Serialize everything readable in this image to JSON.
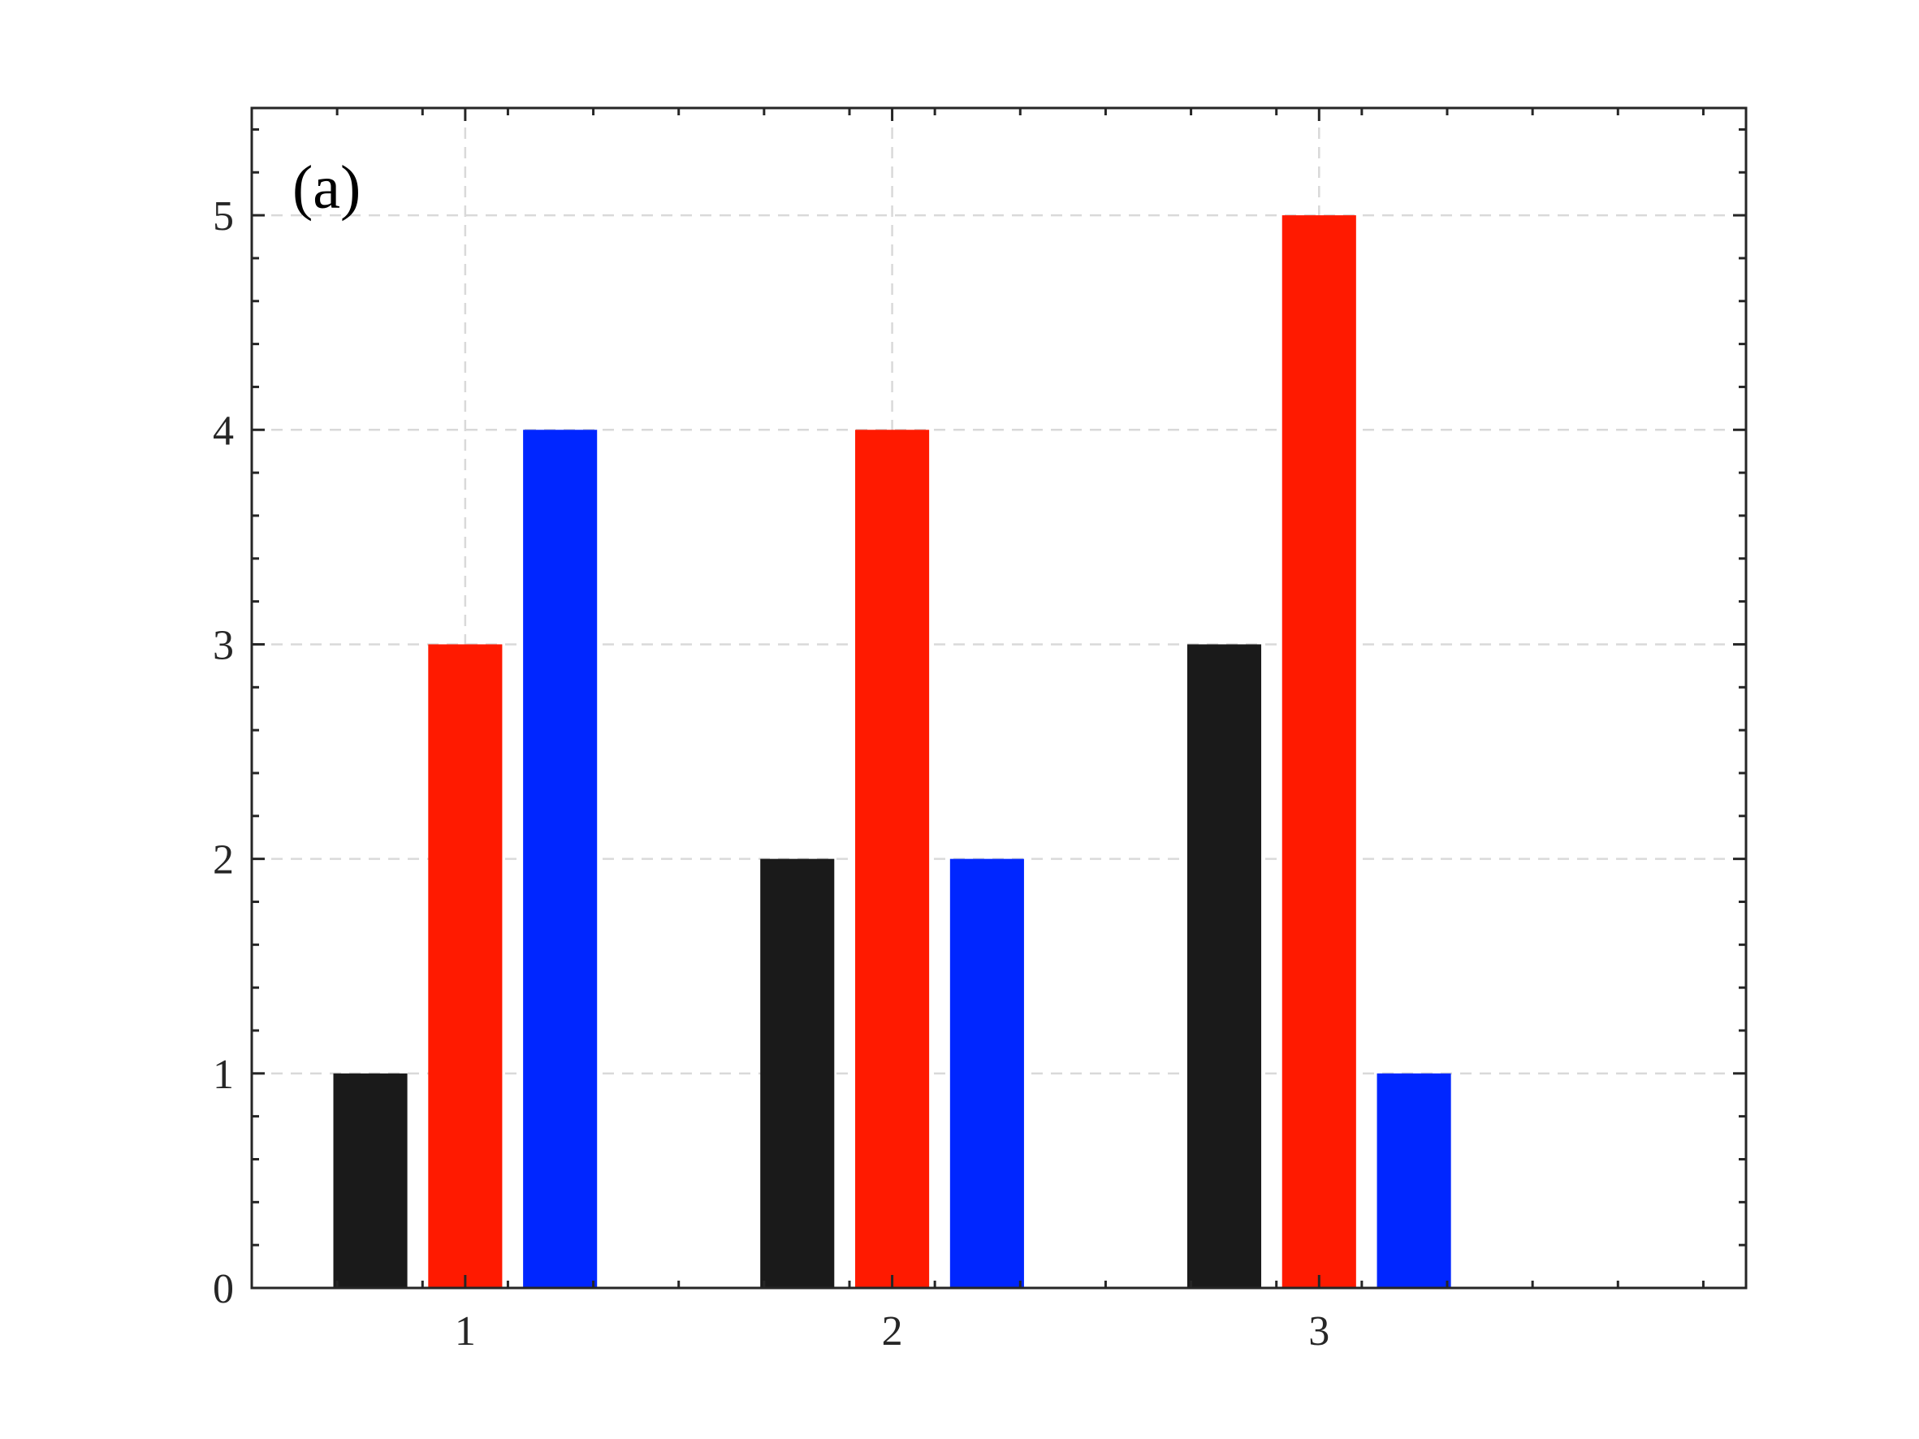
{
  "chart_data": {
    "type": "bar",
    "panel_label": "(a)",
    "categories": [
      "1",
      "2",
      "3"
    ],
    "series": [
      {
        "values": [
          1,
          2,
          3
        ],
        "color": "#1a1a1a"
      },
      {
        "values": [
          3,
          4,
          5
        ],
        "color": "#ff1a00"
      },
      {
        "values": [
          4,
          2,
          1
        ],
        "color": "#0026ff"
      }
    ],
    "x_ticks": [
      "1",
      "2",
      "3"
    ],
    "y_ticks": [
      "0",
      "1",
      "2",
      "3",
      "4",
      "5"
    ],
    "xlim": [
      0.5,
      4.0
    ],
    "ylim": [
      0,
      5.5
    ],
    "grid": true,
    "legend": "none",
    "title": "",
    "xlabel": "",
    "ylabel": ""
  }
}
